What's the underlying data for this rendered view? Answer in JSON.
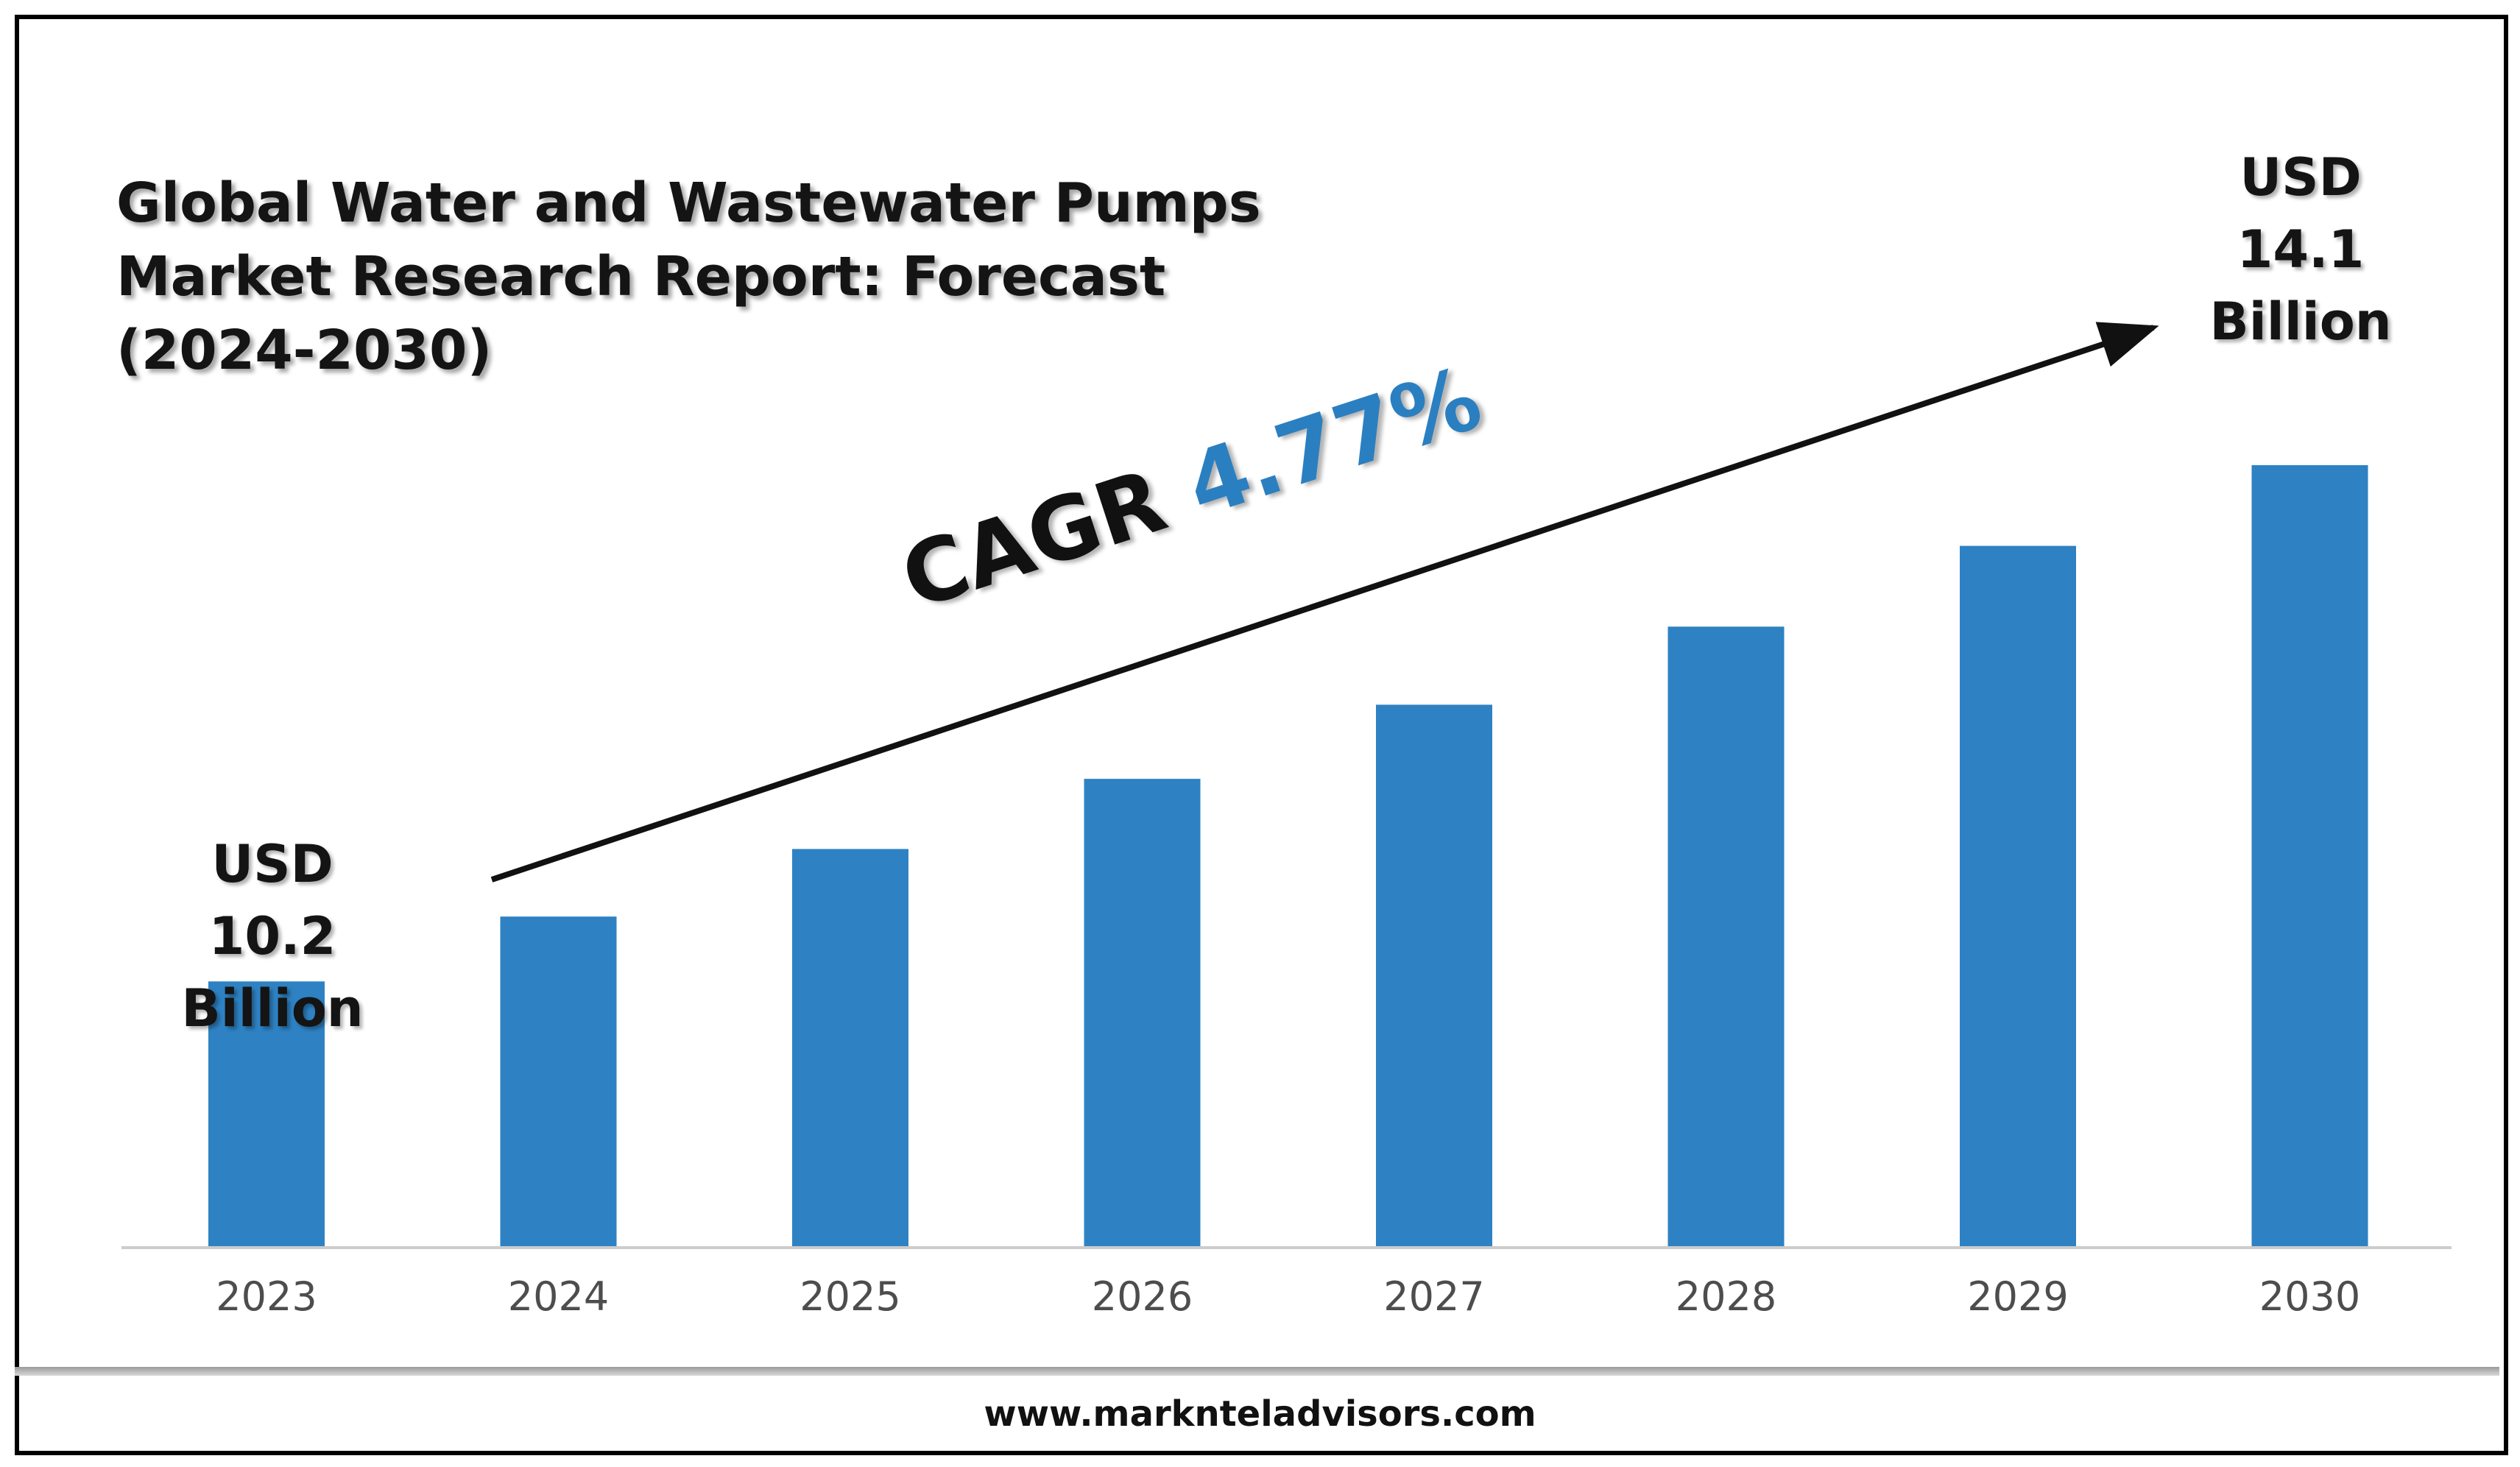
{
  "colors": {
    "bar": "#2e82c3",
    "accent": "#2a7fc1",
    "axis_line": "#cccccc",
    "tick_text": "#4d4d4d"
  },
  "title_lines": [
    "Global Water and Wastewater Pumps",
    "Market Research Report: Forecast",
    "(2024-2030)"
  ],
  "start_label": [
    "USD",
    "10.2",
    "Billion"
  ],
  "end_label": [
    "USD",
    "14.1",
    "Billion"
  ],
  "cagr": {
    "label": "CAGR",
    "value": "4.77%"
  },
  "footer": {
    "url": "www.marknteladvisors.com"
  },
  "chart_data": {
    "type": "bar",
    "title": "Global Water and Wastewater Pumps Market Research Report: Forecast (2024-2030)",
    "categories": [
      "2023",
      "2024",
      "2025",
      "2026",
      "2027",
      "2028",
      "2029",
      "2030"
    ],
    "values": [
      10.2,
      10.69,
      11.2,
      11.73,
      12.29,
      12.88,
      13.49,
      14.1
    ],
    "units": "USD Billion",
    "xlabel": "",
    "ylabel": "",
    "ylim": [
      8.2,
      15
    ],
    "grid": false,
    "legend": "none",
    "annotations": [
      "USD 10.2 Billion",
      "USD 14.1 Billion",
      "CAGR 4.77%"
    ]
  }
}
